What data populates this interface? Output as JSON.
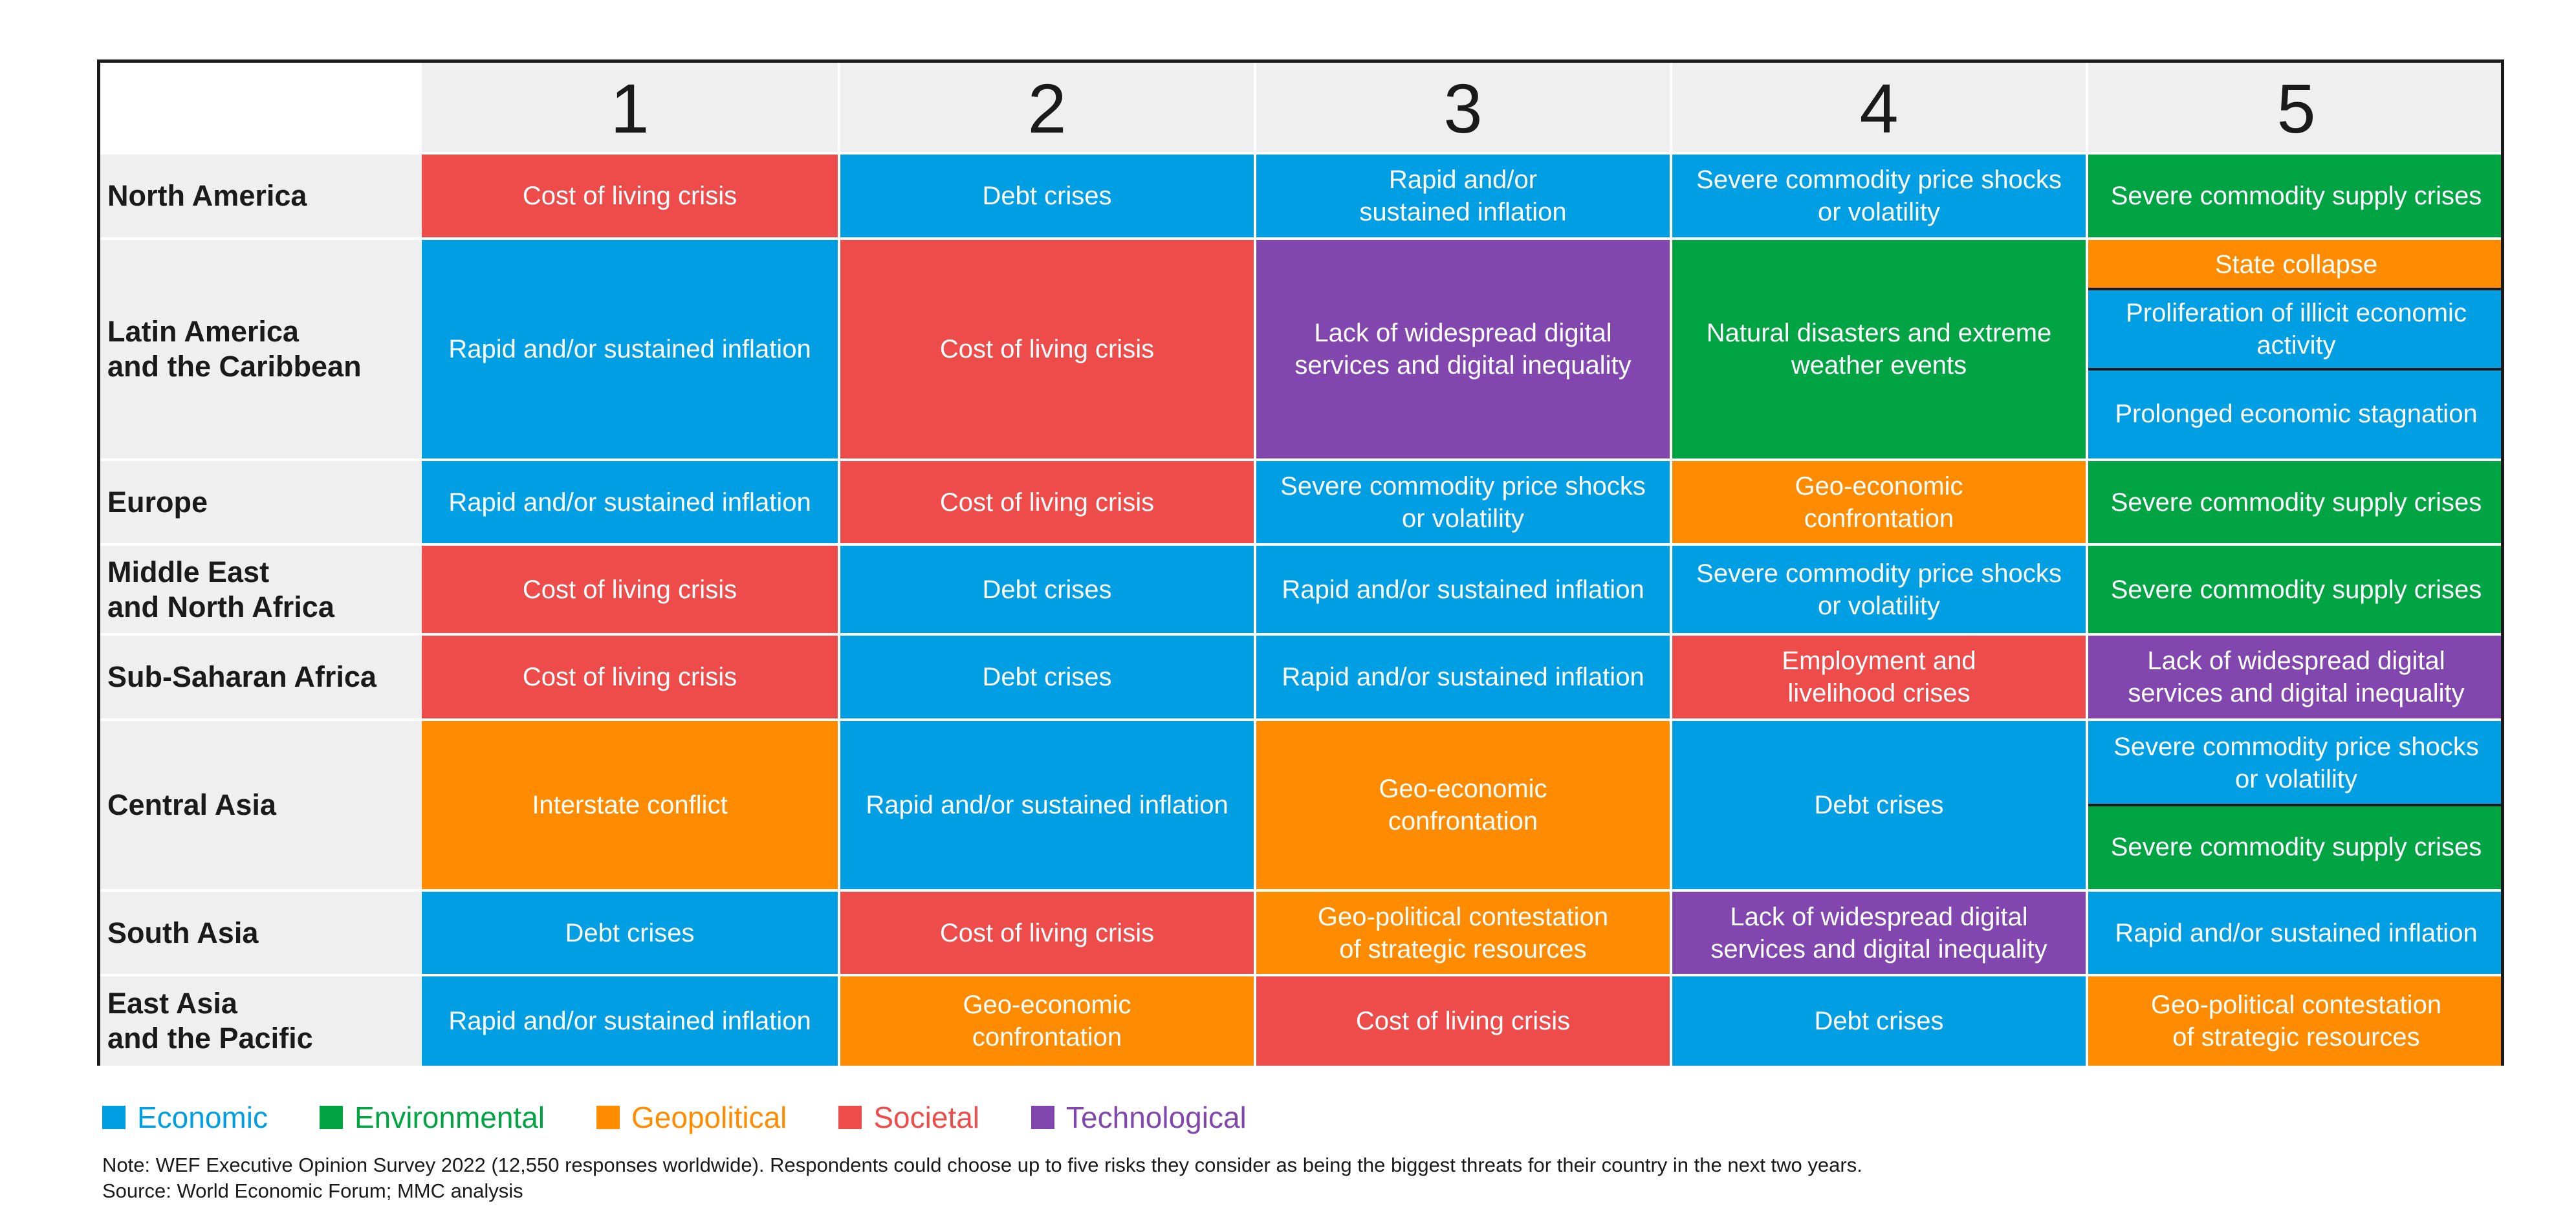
{
  "colors": {
    "Economic": "#009fe3",
    "Environmental": "#00a443",
    "Geopolitical": "#ff8c00",
    "Societal": "#ee4b4b",
    "Technological": "#8246af"
  },
  "chart_data": {
    "type": "table",
    "title": "",
    "columns": [
      "1",
      "2",
      "3",
      "4",
      "5"
    ],
    "rows": [
      {
        "region": "North America",
        "cells": [
          [
            {
              "text": "Cost of living crisis",
              "category": "Societal"
            }
          ],
          [
            {
              "text": "Debt crises",
              "category": "Economic"
            }
          ],
          [
            {
              "text": "Rapid and/or\nsustained inflation",
              "category": "Economic"
            }
          ],
          [
            {
              "text": "Severe commodity price shocks\nor volatility",
              "category": "Economic"
            }
          ],
          [
            {
              "text": "Severe commodity supply crises",
              "category": "Environmental"
            }
          ]
        ]
      },
      {
        "region": "Latin America\nand the Caribbean",
        "cells": [
          [
            {
              "text": "Rapid and/or sustained inflation",
              "category": "Economic"
            }
          ],
          [
            {
              "text": "Cost of living crisis",
              "category": "Societal"
            }
          ],
          [
            {
              "text": "Lack of widespread digital\nservices and digital inequality",
              "category": "Technological"
            }
          ],
          [
            {
              "text": "Natural disasters and extreme\nweather events",
              "category": "Environmental"
            }
          ],
          [
            {
              "text": "State collapse",
              "category": "Geopolitical"
            },
            {
              "text": "Proliferation of illicit economic\nactivity",
              "category": "Economic"
            },
            {
              "text": "Prolonged economic stagnation",
              "category": "Economic"
            }
          ]
        ]
      },
      {
        "region": "Europe",
        "cells": [
          [
            {
              "text": "Rapid and/or sustained inflation",
              "category": "Economic"
            }
          ],
          [
            {
              "text": "Cost of living crisis",
              "category": "Societal"
            }
          ],
          [
            {
              "text": "Severe commodity price shocks\nor volatility",
              "category": "Economic"
            }
          ],
          [
            {
              "text": "Geo-economic\nconfrontation",
              "category": "Geopolitical"
            }
          ],
          [
            {
              "text": "Severe commodity supply crises",
              "category": "Environmental"
            }
          ]
        ]
      },
      {
        "region": "Middle East\nand North Africa",
        "cells": [
          [
            {
              "text": "Cost of living crisis",
              "category": "Societal"
            }
          ],
          [
            {
              "text": "Debt crises",
              "category": "Economic"
            }
          ],
          [
            {
              "text": "Rapid and/or sustained inflation",
              "category": "Economic"
            }
          ],
          [
            {
              "text": "Severe commodity price shocks\nor volatility",
              "category": "Economic"
            }
          ],
          [
            {
              "text": "Severe commodity supply crises",
              "category": "Environmental"
            }
          ]
        ]
      },
      {
        "region": "Sub-Saharan Africa",
        "cells": [
          [
            {
              "text": "Cost of living crisis",
              "category": "Societal"
            }
          ],
          [
            {
              "text": "Debt crises",
              "category": "Economic"
            }
          ],
          [
            {
              "text": "Rapid and/or sustained inflation",
              "category": "Economic"
            }
          ],
          [
            {
              "text": "Employment and\nlivelihood crises",
              "category": "Societal"
            }
          ],
          [
            {
              "text": "Lack of widespread digital\nservices and digital inequality",
              "category": "Technological"
            }
          ]
        ]
      },
      {
        "region": "Central Asia",
        "cells": [
          [
            {
              "text": "Interstate conflict",
              "category": "Geopolitical"
            }
          ],
          [
            {
              "text": "Rapid and/or sustained inflation",
              "category": "Economic"
            }
          ],
          [
            {
              "text": "Geo-economic\nconfrontation",
              "category": "Geopolitical"
            }
          ],
          [
            {
              "text": "Debt crises",
              "category": "Economic"
            }
          ],
          [
            {
              "text": "Severe commodity price shocks\nor volatility",
              "category": "Economic"
            },
            {
              "text": "Severe commodity supply crises",
              "category": "Environmental"
            }
          ]
        ]
      },
      {
        "region": "South Asia",
        "cells": [
          [
            {
              "text": "Debt crises",
              "category": "Economic"
            }
          ],
          [
            {
              "text": "Cost of living crisis",
              "category": "Societal"
            }
          ],
          [
            {
              "text": "Geo-political contestation\nof strategic resources",
              "category": "Geopolitical"
            }
          ],
          [
            {
              "text": "Lack of widespread digital\nservices and digital inequality",
              "category": "Technological"
            }
          ],
          [
            {
              "text": "Rapid and/or sustained inflation",
              "category": "Economic"
            }
          ]
        ]
      },
      {
        "region": "East Asia\nand the Pacific",
        "cells": [
          [
            {
              "text": "Rapid and/or sustained inflation",
              "category": "Economic"
            }
          ],
          [
            {
              "text": "Geo-economic\nconfrontation",
              "category": "Geopolitical"
            }
          ],
          [
            {
              "text": "Cost of living crisis",
              "category": "Societal"
            }
          ],
          [
            {
              "text": "Debt crises",
              "category": "Economic"
            }
          ],
          [
            {
              "text": "Geo-political contestation\nof strategic resources",
              "category": "Geopolitical"
            }
          ]
        ]
      }
    ],
    "legend": [
      "Economic",
      "Environmental",
      "Geopolitical",
      "Societal",
      "Technological"
    ]
  },
  "note": "Note: WEF Executive Opinion Survey 2022 (12,550 responses worldwide). Respondents could choose up to five risks they consider as being the biggest threats for their country in the next two years.",
  "source": "Source: World Economic Forum; MMC analysis"
}
